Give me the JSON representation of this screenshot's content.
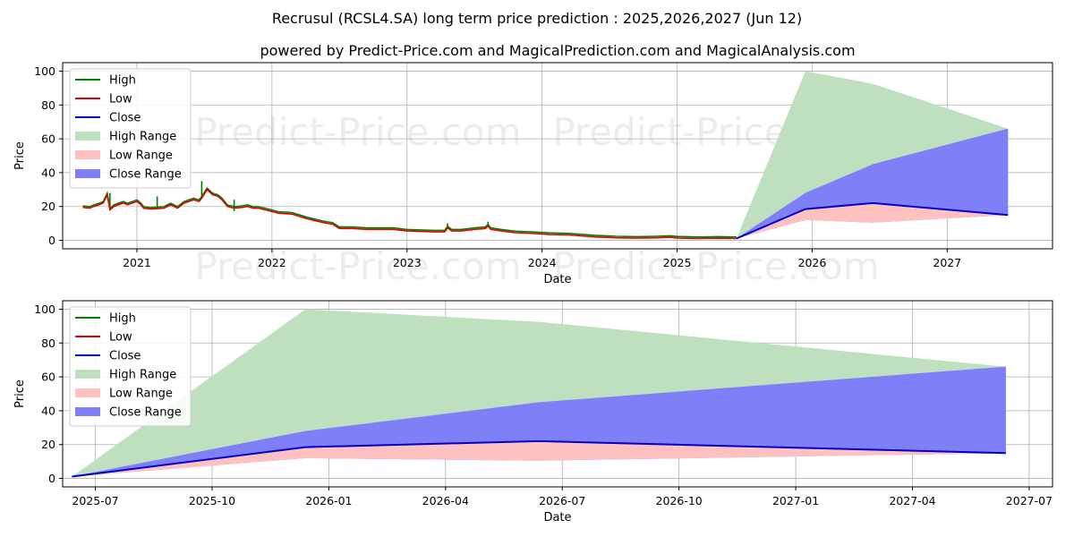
{
  "title": "Recrusul (RCSL4.SA) long term price prediction : 2025,2026,2027 (Jun 12)",
  "subtitle": "powered by Predict-Price.com and MagicalPrediction.com and MagicalAnalysis.com",
  "watermark": "Predict-Price.com",
  "colors": {
    "high": "#008000",
    "low": "#e00000",
    "close": "#0000cc",
    "high_range": "#bfe0bf",
    "low_range": "#ffc0c0",
    "close_range": "#7f7ff7",
    "grid": "#b0b0b0"
  },
  "legend": [
    "High",
    "Low",
    "Close",
    "High Range",
    "Low Range",
    "Close Range"
  ],
  "chart_data": [
    {
      "type": "line",
      "xlabel": "Date",
      "ylabel": "Price",
      "xlim": [
        2020.45,
        2027.78
      ],
      "ylim": [
        -5,
        105
      ],
      "yticks": [
        0,
        20,
        40,
        60,
        80,
        100
      ],
      "xticks": [
        {
          "v": 2021.0,
          "label": "2021"
        },
        {
          "v": 2022.0,
          "label": "2022"
        },
        {
          "v": 2023.0,
          "label": "2023"
        },
        {
          "v": 2024.0,
          "label": "2024"
        },
        {
          "v": 2025.0,
          "label": "2025"
        },
        {
          "v": 2026.0,
          "label": "2026"
        },
        {
          "v": 2027.0,
          "label": "2027"
        }
      ],
      "historical_price": {
        "x": [
          2020.6,
          2020.65,
          2020.68,
          2020.72,
          2020.75,
          2020.78,
          2020.8,
          2020.83,
          2020.86,
          2020.9,
          2020.93,
          2021.0,
          2021.03,
          2021.05,
          2021.1,
          2021.2,
          2021.25,
          2021.3,
          2021.35,
          2021.42,
          2021.46,
          2021.48,
          2021.52,
          2021.56,
          2021.6,
          2021.63,
          2021.67,
          2021.72,
          2021.78,
          2021.82,
          2021.86,
          2021.9,
          2022.0,
          2022.05,
          2022.15,
          2022.25,
          2022.3,
          2022.38,
          2022.45,
          2022.5,
          2022.6,
          2022.7,
          2022.8,
          2022.9,
          2023.0,
          2023.2,
          2023.28,
          2023.3,
          2023.33,
          2023.4,
          2023.5,
          2023.58,
          2023.6,
          2023.62,
          2023.7,
          2023.8,
          2023.95,
          2024.05,
          2024.2,
          2024.4,
          2024.55,
          2024.7,
          2024.85,
          2024.95,
          2025.0,
          2025.15,
          2025.3,
          2025.44
        ],
        "y": [
          19.5,
          19,
          20,
          21,
          22,
          27,
          18,
          20,
          21,
          22,
          21,
          23,
          21,
          19,
          18.5,
          19,
          21,
          19,
          22,
          24,
          23,
          25,
          30,
          27,
          26,
          24,
          20,
          19,
          19.5,
          20,
          19,
          19,
          17,
          16,
          15.5,
          13,
          12,
          10.5,
          9.5,
          7,
          7,
          6.5,
          6.5,
          6.5,
          5.5,
          5,
          5,
          7.5,
          5.5,
          5.5,
          6.5,
          7,
          8.5,
          6.5,
          5.5,
          4.5,
          4,
          3.5,
          3.2,
          2,
          1.5,
          1.3,
          1.5,
          1.8,
          1.4,
          1.1,
          1.3,
          1.1
        ]
      },
      "high_spikes": [
        {
          "x": 2021.48,
          "y": 35
        },
        {
          "x": 2021.15,
          "y": 26
        },
        {
          "x": 2020.8,
          "y": 28
        },
        {
          "x": 2021.72,
          "y": 24
        },
        {
          "x": 2023.6,
          "y": 11
        },
        {
          "x": 2023.3,
          "y": 10
        }
      ],
      "forecast": {
        "x": [
          2025.44,
          2025.95,
          2026.45,
          2027.45
        ],
        "high": [
          1.1,
          100,
          92.5,
          66
        ],
        "low": [
          1.1,
          12,
          10.5,
          15
        ],
        "close_upper": [
          1.1,
          28,
          45,
          66
        ],
        "close_lower": [
          1.1,
          12,
          10.5,
          15
        ],
        "close": [
          1.1,
          18.5,
          22,
          15
        ]
      }
    },
    {
      "type": "line",
      "xlabel": "Date",
      "ylabel": "Price",
      "xlim": [
        2025.43,
        2027.55
      ],
      "ylim": [
        -5,
        105
      ],
      "yticks": [
        0,
        20,
        40,
        60,
        80,
        100
      ],
      "xticks": [
        {
          "v": 2025.5,
          "label": "2025-07"
        },
        {
          "v": 2025.75,
          "label": "2025-10"
        },
        {
          "v": 2026.0,
          "label": "2026-01"
        },
        {
          "v": 2026.25,
          "label": "2026-04"
        },
        {
          "v": 2026.5,
          "label": "2026-07"
        },
        {
          "v": 2026.75,
          "label": "2026-10"
        },
        {
          "v": 2027.0,
          "label": "2027-01"
        },
        {
          "v": 2027.25,
          "label": "2027-04"
        },
        {
          "v": 2027.5,
          "label": "2027-07"
        }
      ],
      "forecast": {
        "x": [
          2025.45,
          2025.95,
          2026.45,
          2027.45
        ],
        "high": [
          1.1,
          100,
          92.5,
          66
        ],
        "low": [
          1.1,
          12,
          10.5,
          15
        ],
        "close_upper": [
          1.1,
          28,
          45,
          66
        ],
        "close_lower": [
          1.1,
          12,
          10.5,
          15
        ],
        "close": [
          1.1,
          18.5,
          22,
          15
        ]
      }
    }
  ]
}
